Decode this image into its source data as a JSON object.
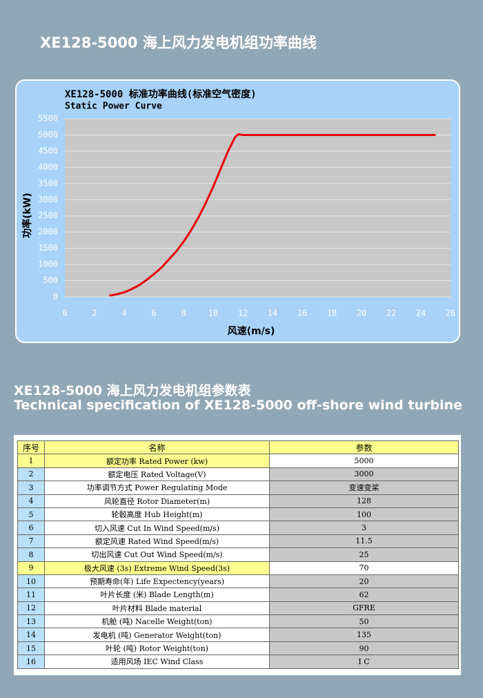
{
  "page_title": "XE128-5000 海上风力发电机组功率曲线",
  "chart_data": {
    "type": "line",
    "title": "XE128-5000 标准功率曲线(标准空气密度)",
    "subtitle": "Static Power Curve",
    "x_label": "风速(m/s)",
    "y_label": "功率(kW)",
    "x": [
      3,
      3.5,
      4,
      4.5,
      5,
      5.5,
      6,
      6.5,
      7,
      7.5,
      8,
      8.5,
      9,
      9.5,
      10,
      10.5,
      11,
      11.5,
      11.7,
      12,
      25
    ],
    "series": [
      {
        "name": "Static Power Curve",
        "color": "#e8000f",
        "values": [
          40,
          80,
          140,
          240,
          360,
          520,
          700,
          900,
          1150,
          1400,
          1700,
          2050,
          2450,
          2900,
          3400,
          3950,
          4500,
          4950,
          5020,
          5000,
          5000
        ]
      }
    ],
    "xlim": [
      0,
      26
    ],
    "xticks": [
      0,
      2,
      4,
      6,
      8,
      10,
      12,
      14,
      16,
      18,
      20,
      22,
      24,
      26
    ],
    "ylim": [
      0,
      5500
    ],
    "yticks": [
      0,
      500,
      1000,
      1500,
      2000,
      2500,
      3000,
      3500,
      4000,
      4500,
      5000,
      5500
    ],
    "grid": true
  },
  "spec_title": "XE128-5000 海上风力发电机组参数表",
  "spec_subtitle": "Technical specification of XE128-5000 off-shore wind turbine",
  "table": {
    "header": [
      "序号",
      "名称",
      "参数"
    ],
    "rows": [
      [
        "1",
        "额定功率 Rated Power (kw)",
        "5000"
      ],
      [
        "2",
        "额定电压 Rated Voltage(V)",
        "3000"
      ],
      [
        "3",
        "功率调节方式 Power Regulating Mode",
        "变速变桨"
      ],
      [
        "4",
        "风轮直径 Rotor Diameter(m)",
        "128"
      ],
      [
        "5",
        "轮毂高度 Hub Height(m)",
        "100"
      ],
      [
        "6",
        "切入风速 Cut In  Wind Speed(m/s)",
        "3"
      ],
      [
        "7",
        "额定风速 Rated Wind Speed(m/s)",
        "11.5"
      ],
      [
        "8",
        "切出风速 Cut Out Wind Speed(m/s)",
        "25"
      ],
      [
        "9",
        "极大风速 (3s) Extreme Wind Speed(3s)",
        "70"
      ],
      [
        "10",
        "预期寿命(年) Life Expectency(years)",
        "20"
      ],
      [
        "11",
        "叶片长度 (米) Blade Length(m)",
        "62"
      ],
      [
        "12",
        "叶片材料 Blade material",
        "GFRE"
      ],
      [
        "13",
        "机舱 (吨) Nacelle Weight(ton)",
        "50"
      ],
      [
        "14",
        "发电机 (吨) Generator Weight(ton)",
        "135"
      ],
      [
        "15",
        "叶轮 (吨) Rotor Weight(ton)",
        "90"
      ],
      [
        "16",
        "适用风场 IEC Wind Class",
        "I C"
      ]
    ]
  }
}
